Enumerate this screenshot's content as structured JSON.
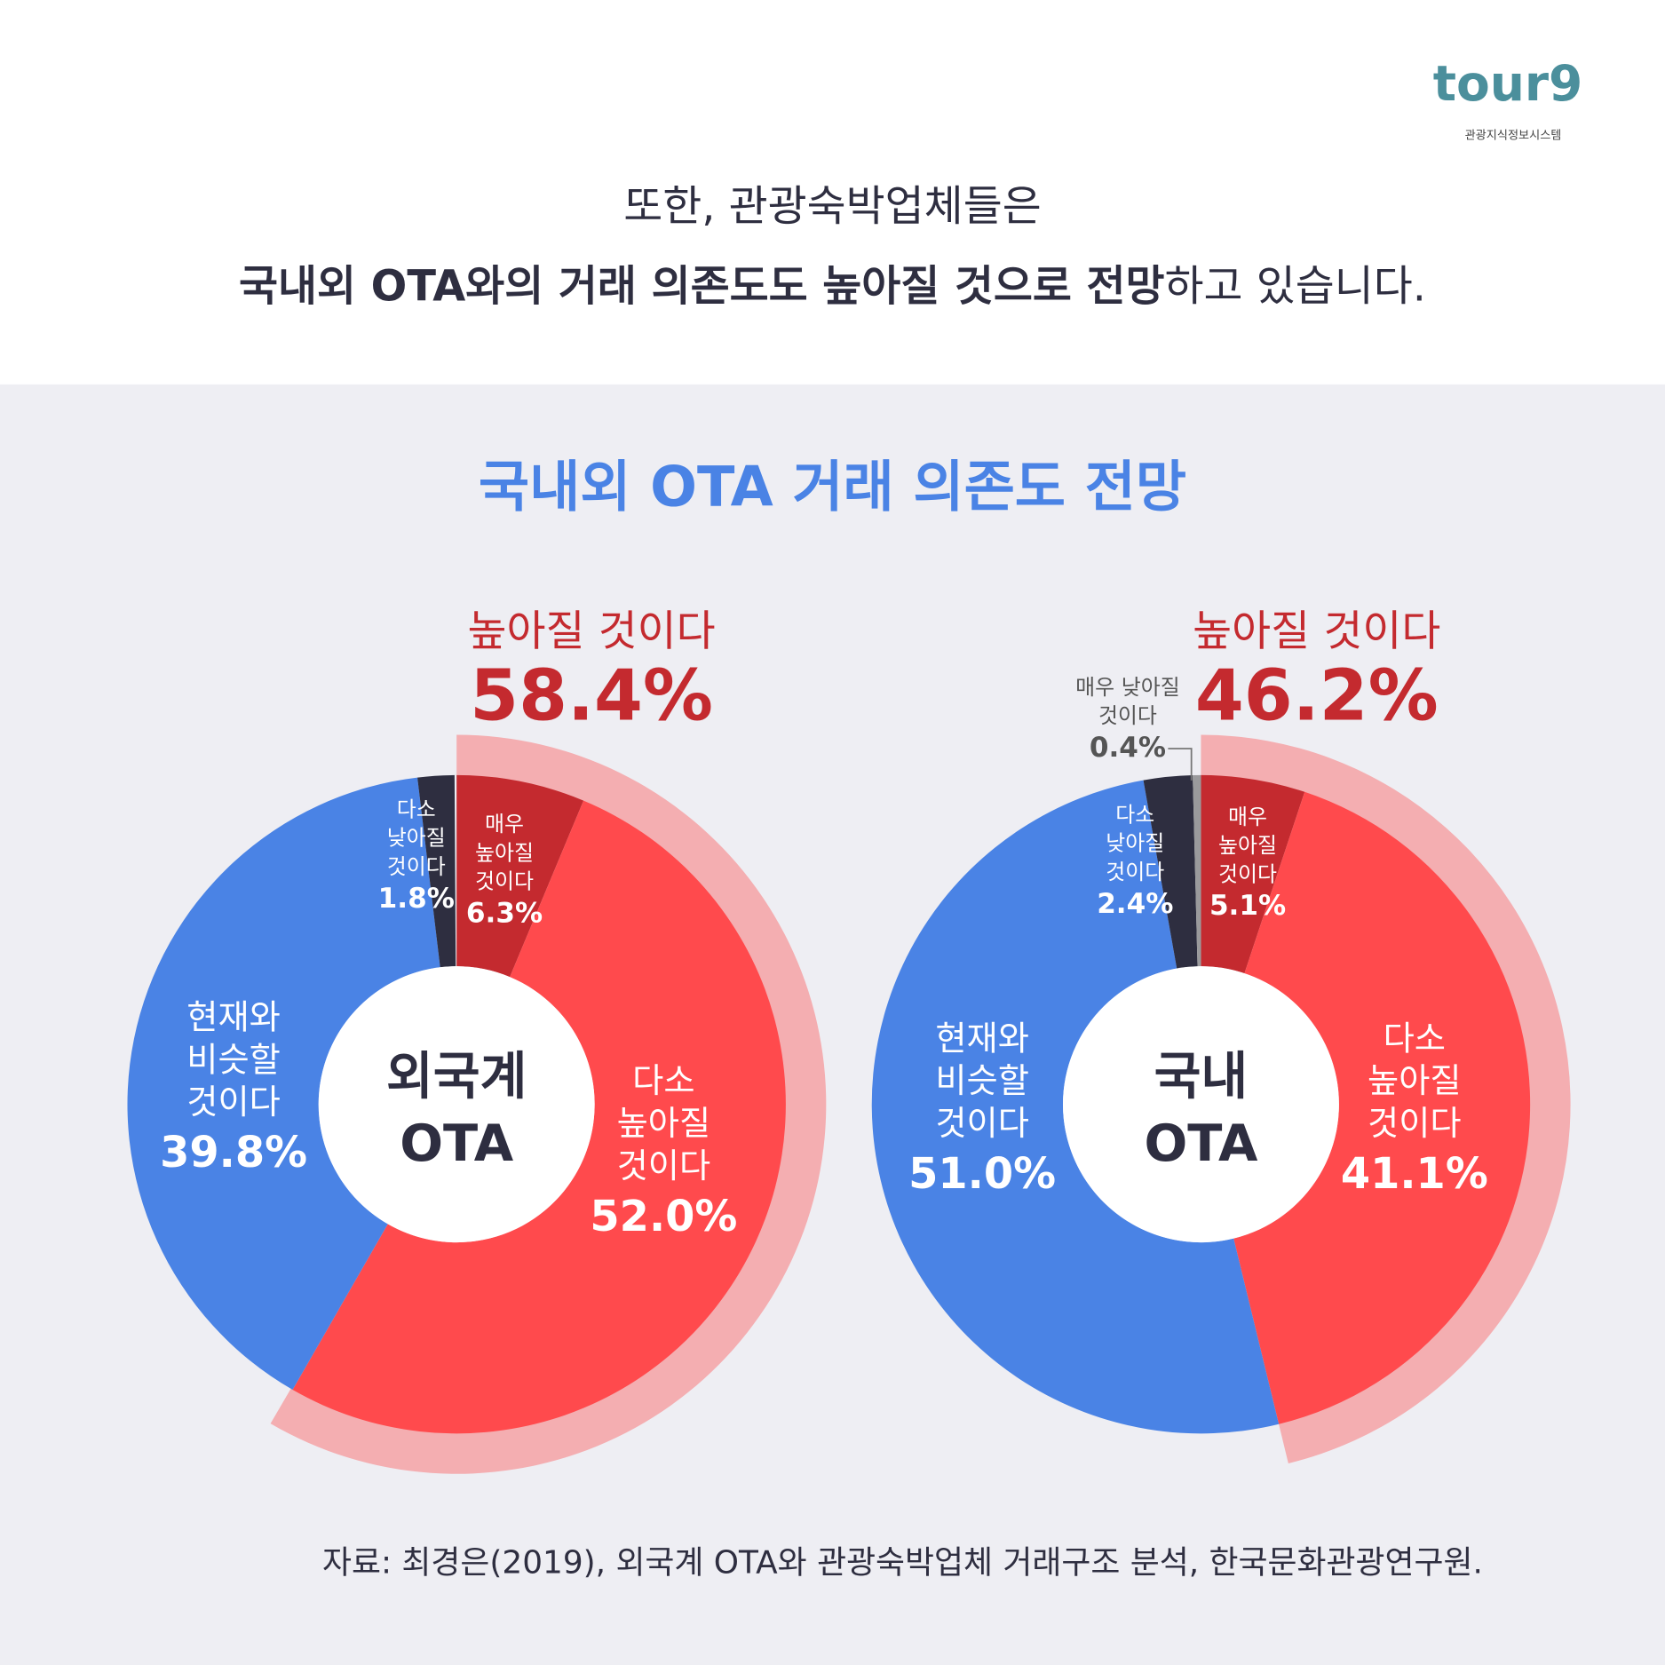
{
  "header": {
    "logo": "tour9",
    "logo_subtitle": "관광지식정보시스템",
    "line1": "또한, 관광숙박업체들은",
    "line2": [
      {
        "text": "국내외 OTA와의 거래 의존도도 높아질 것으로 전망",
        "bold": true
      },
      {
        "text": "하고 있습니다.",
        "bold": false
      }
    ],
    "chart_title": "국내외 OTA 거래 의존도 전망"
  },
  "chart_data": [
    {
      "type": "pie",
      "center_label": [
        "외국계",
        "OTA"
      ],
      "categories": [
        [
          "매우",
          "높아질",
          "것이다"
        ],
        [
          "다소",
          "높아질",
          "것이다"
        ],
        [
          "현재와",
          "비슷할",
          "것이다"
        ],
        [
          "다소",
          "낮아질",
          "것이다"
        ]
      ],
      "values": [
        6.3,
        52.0,
        39.8,
        1.8
      ],
      "value_labels": [
        "6.3%",
        "52.0%",
        "39.8%",
        "1.8%"
      ],
      "colors": [
        "#c42a2f",
        "#ff4a4d",
        "#4a83e5",
        "#2e2e40"
      ],
      "highlight": {
        "label": "높아질 것이다",
        "value": 58.4,
        "value_label": "58.4%",
        "color": "#f4aeb1",
        "text_color": "#c42a2f"
      }
    },
    {
      "type": "pie",
      "center_label": [
        "국내",
        "OTA"
      ],
      "categories": [
        [
          "매우",
          "높아질",
          "것이다"
        ],
        [
          "다소",
          "높아질",
          "것이다"
        ],
        [
          "현재와",
          "비슷할",
          "것이다"
        ],
        [
          "다소",
          "낮아질",
          "것이다"
        ],
        [
          "매우 낮아질",
          "것이다"
        ]
      ],
      "values": [
        5.1,
        41.1,
        51.0,
        2.4,
        0.4
      ],
      "value_labels": [
        "5.1%",
        "41.1%",
        "51.0%",
        "2.4%",
        "0.4%"
      ],
      "colors": [
        "#c42a2f",
        "#ff4a4d",
        "#4a83e5",
        "#2e2e40",
        "#9a9a9c"
      ],
      "highlight": {
        "label": "높아질 것이다",
        "value": 46.2,
        "value_label": "46.2%",
        "color": "#f4aeb1",
        "text_color": "#c42a2f"
      }
    }
  ],
  "source": "자료: 최경은(2019), 외국계 OTA와 관광숙박업체 거래구조 분석, 한국문화관광연구원."
}
